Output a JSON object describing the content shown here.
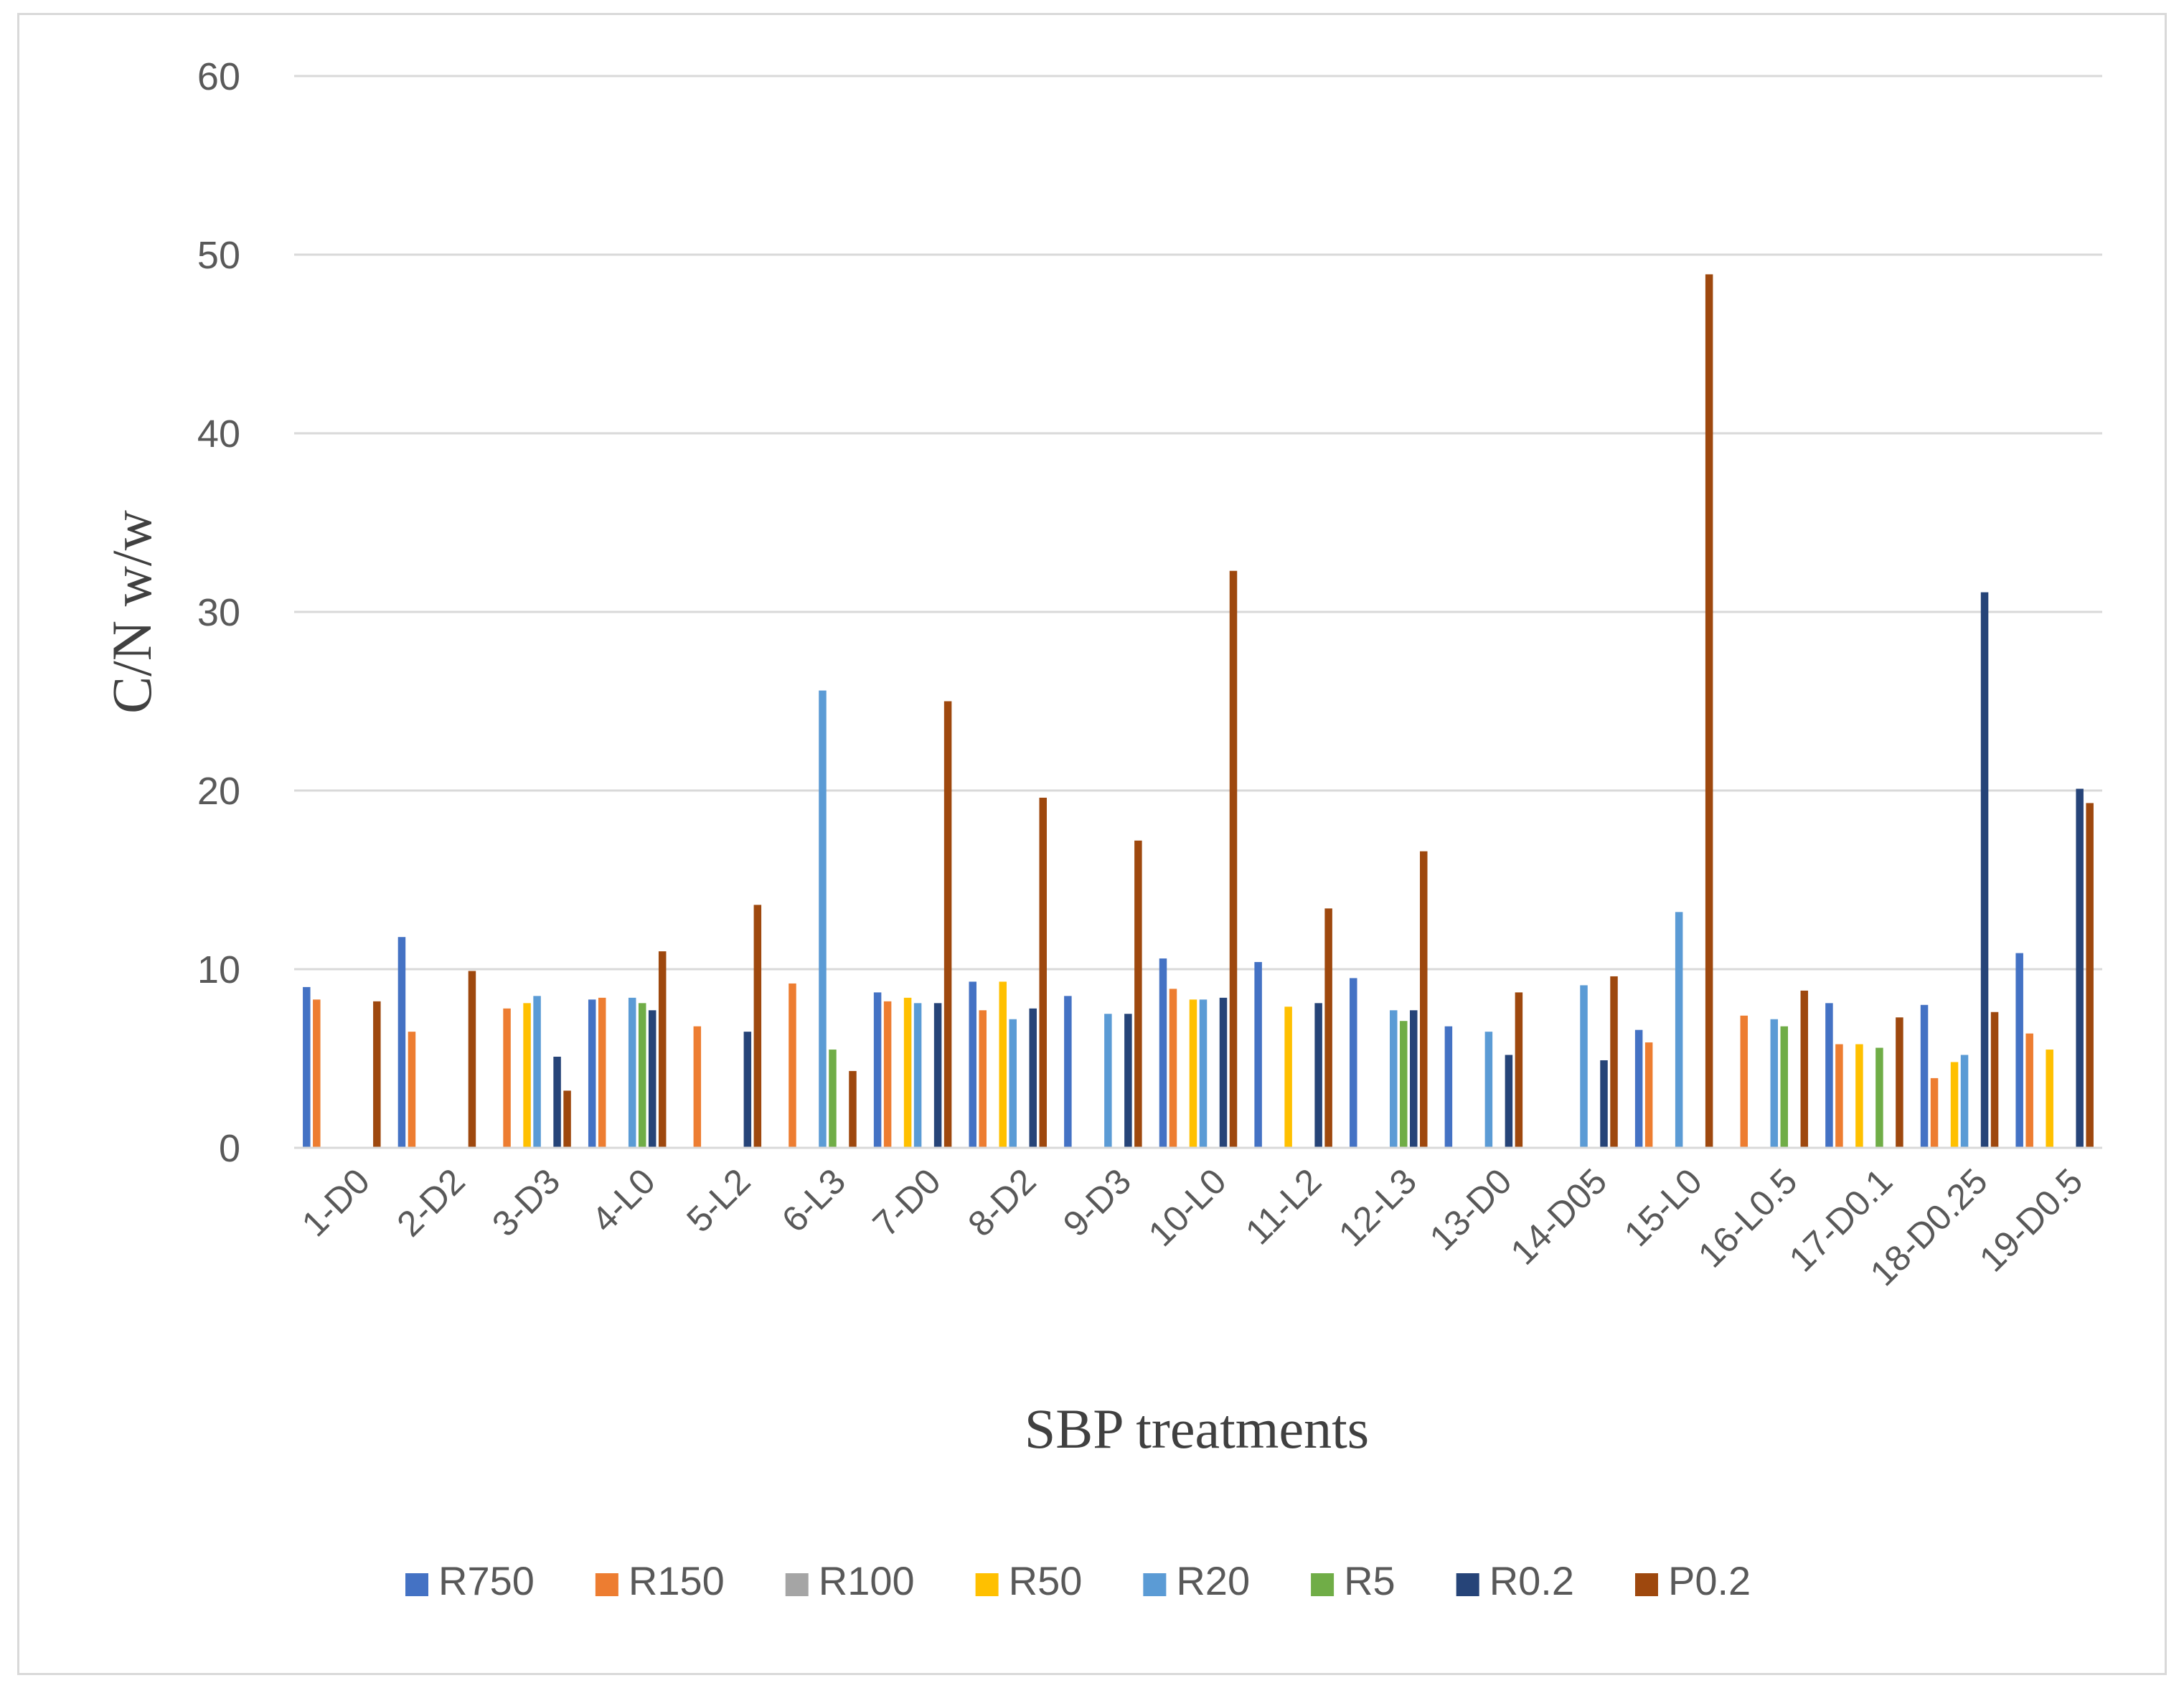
{
  "chart_data": {
    "type": "bar",
    "title": "",
    "xlabel": "SBP treatments",
    "ylabel": "C/N w/w",
    "ylim": [
      0,
      60
    ],
    "yticks": [
      0,
      10,
      20,
      30,
      40,
      50,
      60
    ],
    "grid": true,
    "legend_position": "bottom",
    "categories": [
      "1-D0",
      "2-D2",
      "3-D3",
      "4-L0",
      "5-L2",
      "6-L3",
      "7-D0",
      "8-D2",
      "9-D3",
      "10-L0",
      "11-L2",
      "12-L3",
      "13-D0",
      "14-D05",
      "15-L0",
      "16-L0.5",
      "17-D0.1",
      "18-D0.25",
      "19-D0.5"
    ],
    "series": [
      {
        "name": "R750",
        "color": "#4472C4",
        "values": [
          9.0,
          11.8,
          null,
          8.3,
          null,
          null,
          8.7,
          9.3,
          8.5,
          10.6,
          10.4,
          9.5,
          6.8,
          null,
          6.6,
          null,
          8.1,
          8.0,
          10.9
        ]
      },
      {
        "name": "R150",
        "color": "#ED7D31",
        "values": [
          8.3,
          6.5,
          7.8,
          8.4,
          6.8,
          9.2,
          8.2,
          7.7,
          null,
          8.9,
          null,
          null,
          null,
          null,
          5.9,
          7.4,
          5.8,
          3.9,
          6.4
        ]
      },
      {
        "name": "R100",
        "color": "#A5A5A5",
        "values": [
          null,
          null,
          null,
          null,
          null,
          null,
          null,
          null,
          null,
          null,
          null,
          null,
          null,
          null,
          null,
          null,
          null,
          null,
          null
        ]
      },
      {
        "name": "R50",
        "color": "#FFC000",
        "values": [
          null,
          null,
          8.1,
          null,
          null,
          null,
          8.4,
          9.3,
          null,
          8.3,
          7.9,
          null,
          null,
          null,
          null,
          null,
          5.8,
          4.8,
          5.5
        ]
      },
      {
        "name": "R20",
        "color": "#5B9BD5",
        "values": [
          null,
          null,
          8.5,
          8.4,
          null,
          25.6,
          8.1,
          7.2,
          7.5,
          8.3,
          null,
          7.7,
          6.5,
          9.1,
          13.2,
          7.2,
          null,
          5.2,
          null
        ]
      },
      {
        "name": "R5",
        "color": "#70AD47",
        "values": [
          null,
          null,
          null,
          8.1,
          null,
          5.5,
          null,
          null,
          null,
          null,
          null,
          7.1,
          null,
          null,
          null,
          6.8,
          5.6,
          null,
          null
        ]
      },
      {
        "name": "R0.2",
        "color": "#264478",
        "values": [
          null,
          null,
          5.1,
          7.7,
          6.5,
          null,
          8.1,
          7.8,
          7.5,
          8.4,
          8.1,
          7.7,
          5.2,
          4.9,
          null,
          null,
          null,
          31.1,
          20.1
        ]
      },
      {
        "name": "P0.2",
        "color": "#9E480E",
        "values": [
          8.2,
          9.9,
          3.2,
          11.0,
          13.6,
          4.3,
          25.0,
          19.6,
          17.2,
          32.3,
          13.4,
          16.6,
          8.7,
          9.6,
          48.9,
          8.8,
          7.3,
          7.6,
          19.3
        ]
      }
    ]
  }
}
